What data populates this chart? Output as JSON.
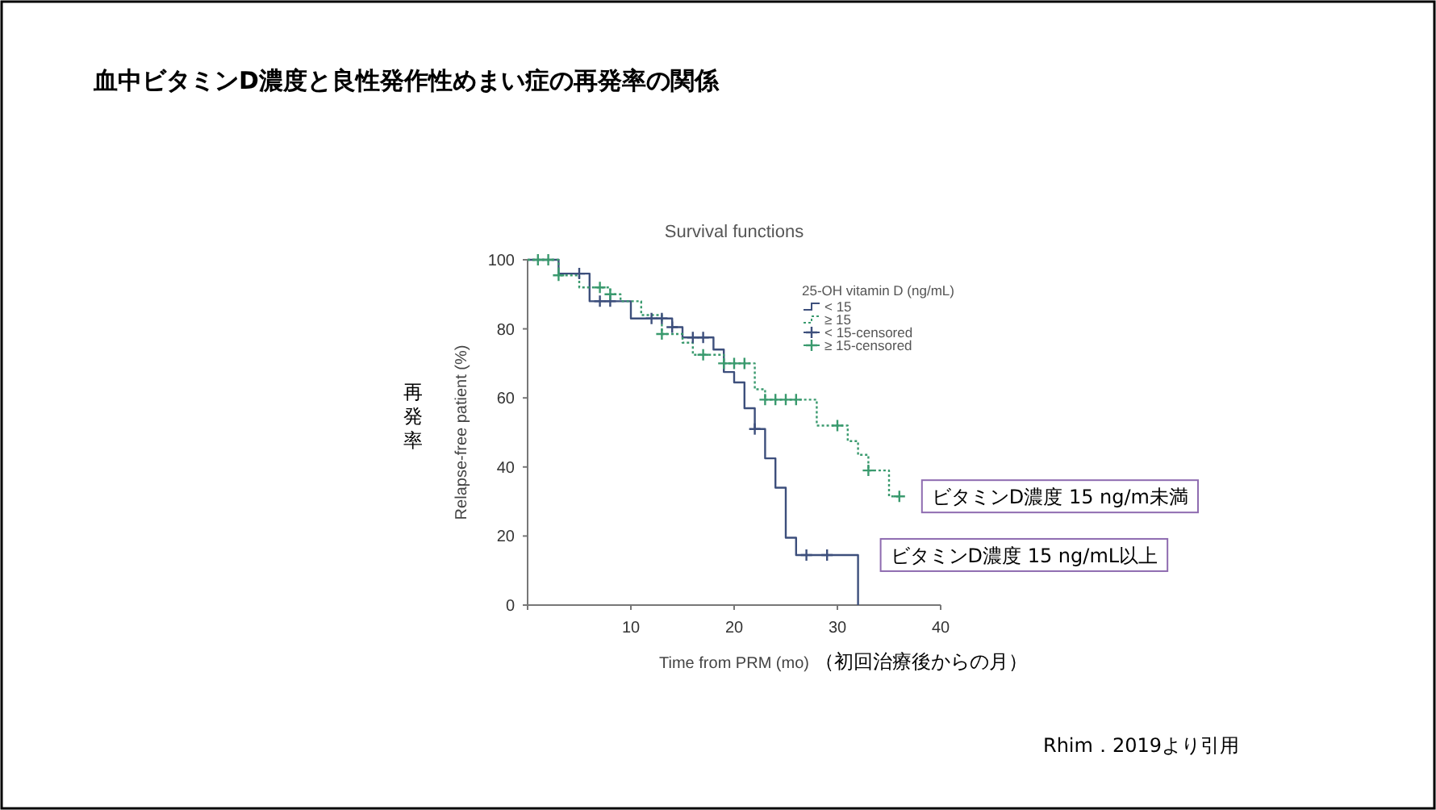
{
  "chart_data": {
    "type": "step",
    "title": "血中ビタミンD濃度と良性発作性めまい症の再発率の関係",
    "subtitle": "Survival functions",
    "xlabel": "Time from PRM (mo)",
    "ylabel": "Relapse-free patient (%)",
    "legend_title": "25-OH vitamin D (ng/mL)",
    "legend": "top right",
    "xlim": [
      0,
      40
    ],
    "ylim": [
      0,
      100
    ],
    "xticks": [
      {
        "value": 0,
        "label": null
      },
      10,
      20,
      30,
      40
    ],
    "yticks": [
      0,
      20,
      40,
      60,
      80,
      100
    ],
    "series": [
      {
        "name": "< 15",
        "color": "#3d4f7c",
        "line_style": "solid",
        "x": [
          0,
          3,
          6,
          10,
          14,
          15,
          18,
          19,
          20,
          21,
          22,
          23,
          24,
          25,
          26,
          32
        ],
        "values": [
          100,
          96,
          88,
          83,
          80.5,
          77.5,
          74,
          67.5,
          64.5,
          57,
          51,
          42.5,
          34,
          19.5,
          14.5,
          0
        ]
      },
      {
        "name": "≥ 15",
        "color": "#3a9a6e",
        "line_style": "dotted",
        "x": [
          0,
          3,
          5,
          8,
          9,
          11,
          13,
          15,
          16,
          19,
          22,
          23,
          28,
          31,
          32,
          33,
          35,
          36
        ],
        "values": [
          100,
          95.5,
          92,
          90,
          88,
          84,
          78.5,
          76,
          72.5,
          70,
          62.5,
          59.5,
          52,
          47.5,
          43.5,
          39,
          31.5,
          31.5
        ]
      },
      {
        "name": "< 15-censored",
        "type": "scatter",
        "marker": "cross",
        "color": "#3d4f7c",
        "x": [
          5,
          7,
          8,
          12,
          13,
          14,
          16,
          17,
          22,
          27,
          29
        ],
        "values": [
          96,
          88,
          88,
          83,
          83,
          80.5,
          77.5,
          77.5,
          51,
          14.5,
          14.5
        ]
      },
      {
        "name": "≥ 15-censored",
        "type": "scatter",
        "marker": "cross",
        "color": "#3a9a6e",
        "x": [
          1,
          2,
          3,
          7,
          8,
          13,
          17,
          19,
          20,
          21,
          23,
          24,
          25,
          26,
          30,
          33,
          36
        ],
        "values": [
          100,
          100,
          95.5,
          92,
          90,
          78.5,
          72.5,
          70,
          70,
          70,
          59.5,
          59.5,
          59.5,
          59.5,
          52,
          39,
          31.5
        ]
      }
    ],
    "annotations": [
      {
        "text": "ビタミンD濃度 15 ng/m未満",
        "x": 36,
        "y": 31.5
      },
      {
        "text": "ビタミンD濃度 15 ng/mL以上",
        "x": 32,
        "y": 14.5
      },
      "再発率",
      "（初回治療後からの月）",
      "Rhim．2019より引用"
    ]
  }
}
